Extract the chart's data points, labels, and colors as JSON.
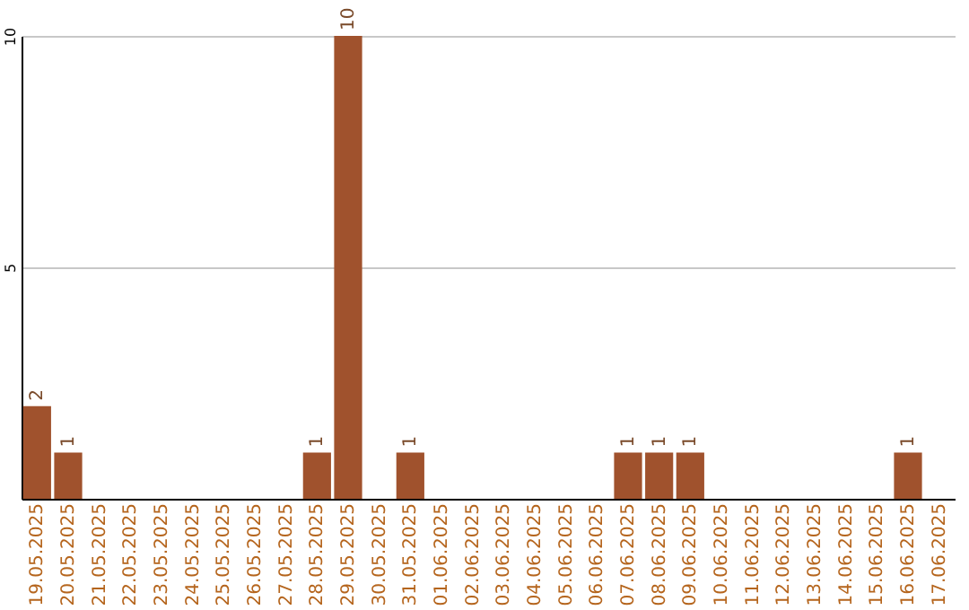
{
  "chart_data": {
    "type": "bar",
    "categories": [
      "19.05.2025",
      "20.05.2025",
      "21.05.2025",
      "22.05.2025",
      "23.05.2025",
      "24.05.2025",
      "25.05.2025",
      "26.05.2025",
      "27.05.2025",
      "28.05.2025",
      "29.05.2025",
      "30.05.2025",
      "31.05.2025",
      "01.06.2025",
      "02.06.2025",
      "03.06.2025",
      "04.06.2025",
      "05.06.2025",
      "06.06.2025",
      "07.06.2025",
      "08.06.2025",
      "09.06.2025",
      "10.06.2025",
      "11.06.2025",
      "12.06.2025",
      "13.06.2025",
      "14.06.2025",
      "15.06.2025",
      "16.06.2025",
      "17.06.2025"
    ],
    "values": [
      2,
      1,
      0,
      0,
      0,
      0,
      0,
      0,
      0,
      1,
      10,
      0,
      1,
      0,
      0,
      0,
      0,
      0,
      0,
      1,
      1,
      1,
      0,
      0,
      0,
      0,
      0,
      0,
      1,
      0
    ],
    "value_labels": [
      "2",
      "1",
      null,
      null,
      null,
      null,
      null,
      null,
      null,
      "1",
      "10",
      null,
      "1",
      null,
      null,
      null,
      null,
      null,
      null,
      "1",
      "1",
      "1",
      null,
      null,
      null,
      null,
      null,
      null,
      "1",
      null
    ],
    "color": "#a0522d",
    "ylim": [
      0,
      10
    ],
    "yticks": [
      5,
      10
    ],
    "grid": "y"
  }
}
